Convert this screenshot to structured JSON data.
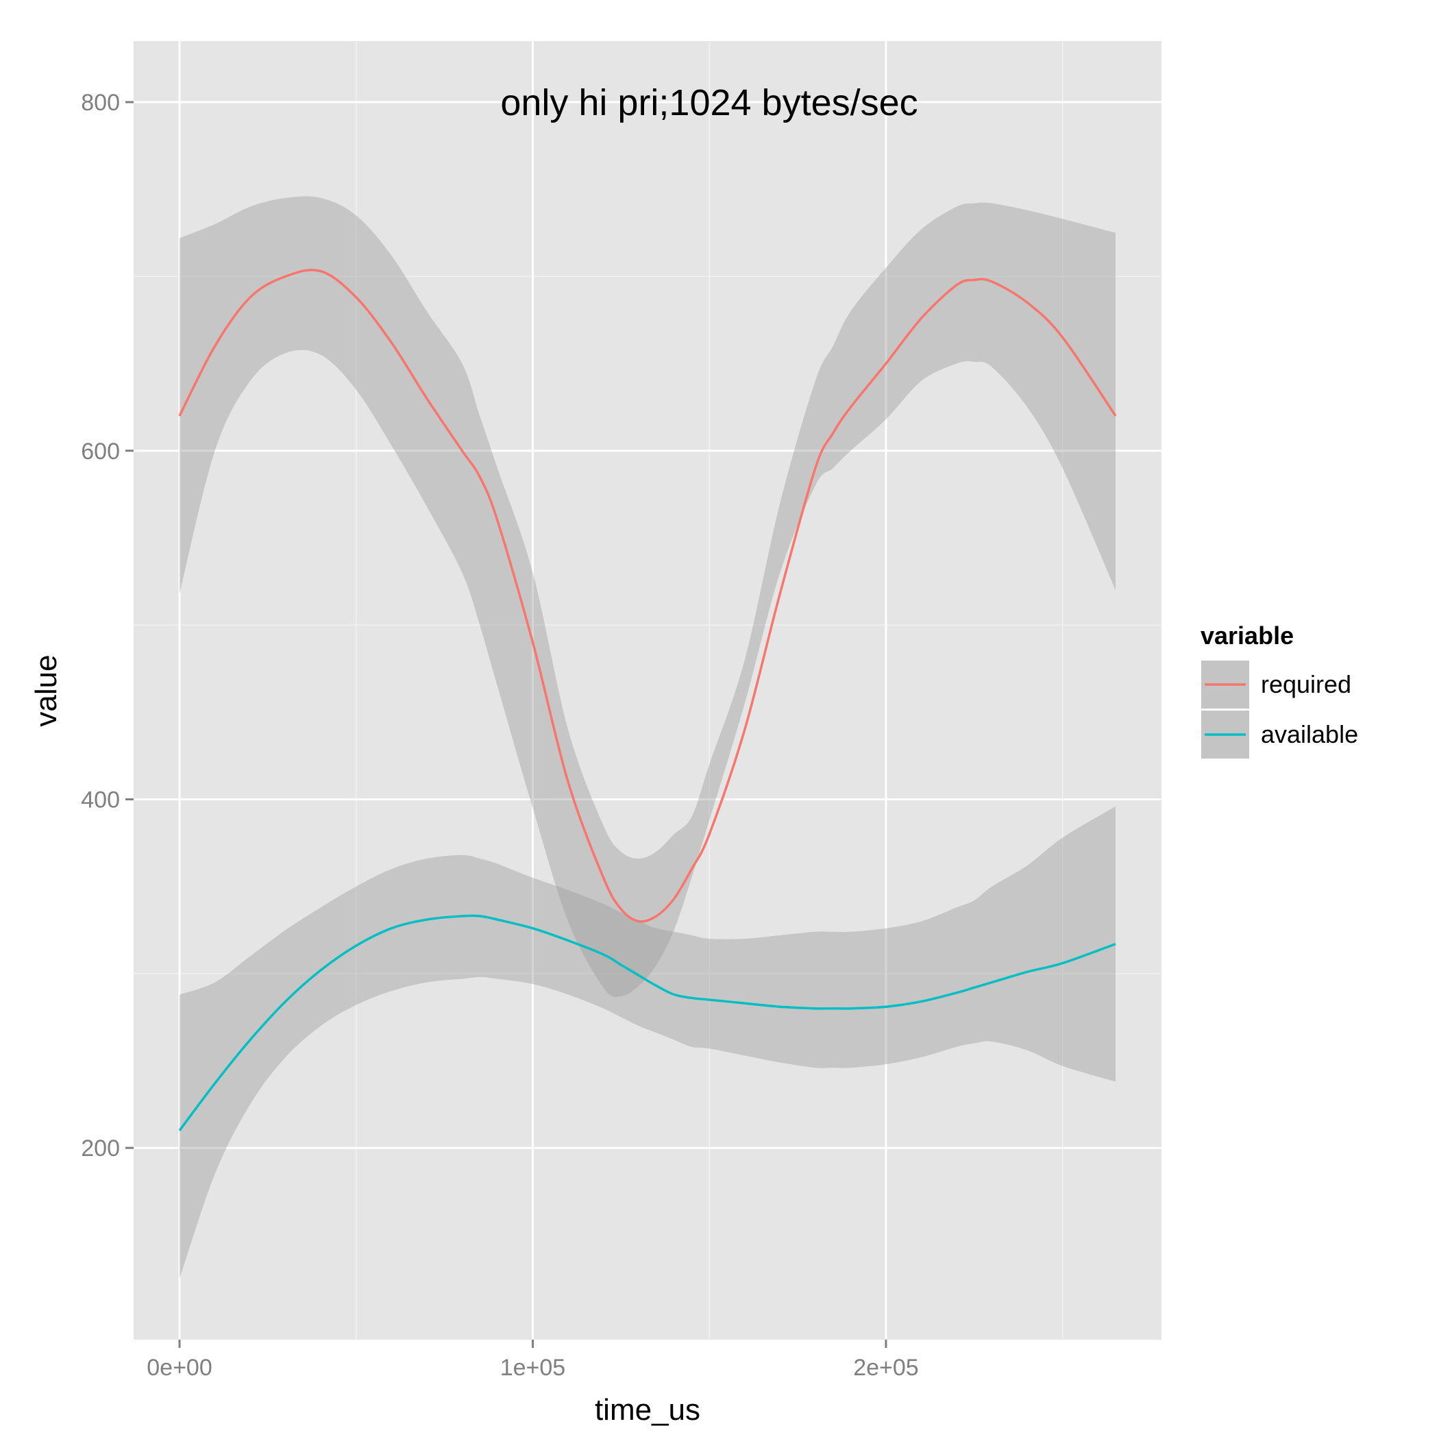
{
  "chart_data": {
    "type": "line",
    "title": "only hi pri;1024 bytes/sec",
    "xlabel": "time_us",
    "ylabel": "value",
    "xlim": [
      -13000,
      278000
    ],
    "ylim": [
      90,
      835
    ],
    "x_ticks": [
      {
        "value": 0,
        "label": "0e+00"
      },
      {
        "value": 100000,
        "label": "1e+05"
      },
      {
        "value": 200000,
        "label": "2e+05"
      }
    ],
    "y_ticks": [
      {
        "value": 200,
        "label": "200"
      },
      {
        "value": 400,
        "label": "400"
      },
      {
        "value": 600,
        "label": "600"
      },
      {
        "value": 800,
        "label": "800"
      }
    ],
    "x_minor": [
      50000,
      150000,
      250000
    ],
    "y_minor": [
      300,
      500,
      700
    ],
    "grid": true,
    "legend": {
      "title": "variable",
      "position": "right"
    },
    "x": [
      0,
      10000,
      20000,
      30000,
      40000,
      50000,
      60000,
      70000,
      80000,
      85000,
      90000,
      100000,
      110000,
      120000,
      125000,
      130000,
      135000,
      140000,
      145000,
      150000,
      160000,
      170000,
      180000,
      185000,
      190000,
      200000,
      210000,
      220000,
      225000,
      230000,
      240000,
      250000,
      265000
    ],
    "series": [
      {
        "name": "required",
        "color": "#F8766D",
        "values": [
          620,
          660,
          688,
          700,
          703,
          688,
          662,
          630,
          600,
          585,
          560,
          490,
          410,
          355,
          337,
          330,
          333,
          343,
          360,
          380,
          440,
          518,
          590,
          610,
          625,
          650,
          676,
          695,
          698,
          697,
          685,
          665,
          620
        ],
        "lower": [
          518,
          600,
          640,
          656,
          655,
          635,
          603,
          568,
          530,
          500,
          465,
          395,
          330,
          292,
          287,
          293,
          305,
          325,
          355,
          388,
          455,
          530,
          580,
          590,
          600,
          618,
          640,
          650,
          651,
          648,
          625,
          590,
          520
        ],
        "upper": [
          722,
          730,
          740,
          745,
          745,
          735,
          712,
          680,
          650,
          620,
          590,
          530,
          440,
          385,
          370,
          366,
          370,
          380,
          390,
          420,
          480,
          570,
          640,
          660,
          680,
          705,
          727,
          740,
          742,
          742,
          738,
          733,
          725
        ]
      },
      {
        "name": "available",
        "color": "#00BFC4",
        "values": [
          210,
          237,
          262,
          284,
          302,
          316,
          326,
          331,
          333,
          333,
          331,
          326,
          319,
          311,
          305,
          299,
          293,
          288,
          286,
          285,
          283,
          281,
          280,
          280,
          280,
          281,
          284,
          289,
          292,
          295,
          301,
          306,
          317
        ],
        "lower": [
          125,
          185,
          225,
          252,
          270,
          282,
          290,
          295,
          297,
          298,
          297,
          294,
          288,
          280,
          275,
          270,
          266,
          262,
          258,
          257,
          253,
          249,
          246,
          246,
          246,
          248,
          252,
          258,
          260,
          261,
          256,
          247,
          238
        ],
        "upper": [
          288,
          295,
          310,
          325,
          338,
          350,
          360,
          366,
          368,
          366,
          363,
          355,
          348,
          340,
          335,
          330,
          326,
          324,
          322,
          320,
          320,
          322,
          324,
          324,
          324,
          326,
          330,
          338,
          342,
          350,
          362,
          378,
          396
        ]
      }
    ]
  }
}
